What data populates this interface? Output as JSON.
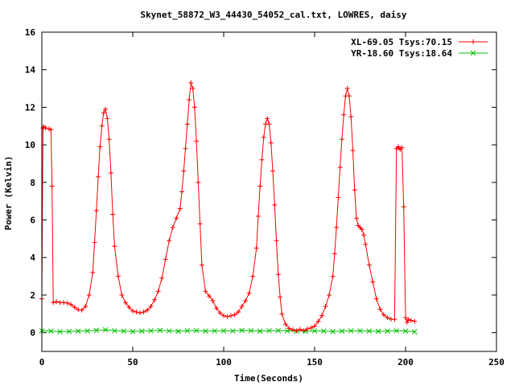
{
  "chart_data": {
    "type": "line",
    "title": "Skynet_58872_W3_44430_54052_cal.txt, LOWRES, daisy",
    "xlabel": "Time(Seconds)",
    "ylabel": "Power (Kelvin)",
    "xlim": [
      0,
      250
    ],
    "ylim": [
      -1,
      16
    ],
    "x_ticks": [
      0,
      50,
      100,
      150,
      200,
      250
    ],
    "y_ticks": [
      0,
      2,
      4,
      6,
      8,
      10,
      12,
      14,
      16
    ],
    "x_tick_labels": [
      "0",
      "50",
      "100",
      "150",
      "200",
      "250"
    ],
    "y_tick_labels": [
      "0",
      "2",
      "4",
      "6",
      "8",
      "10",
      "12",
      "14",
      "16"
    ],
    "legend_position": "top-right",
    "grid": false,
    "series": [
      {
        "name": "XL-69.05 Tsys:70.15",
        "color": "#ff0000",
        "marker": "plus",
        "x": [
          0,
          0.6,
          1.2,
          2,
          4,
          5,
          5.6,
          6.3,
          8,
          10,
          12,
          14,
          16,
          18,
          20,
          22,
          24,
          26,
          28,
          29,
          30,
          31,
          32,
          33,
          34,
          35,
          36,
          37,
          38,
          39,
          40,
          42,
          44,
          46,
          48,
          50,
          52,
          54,
          56,
          58,
          60,
          62,
          64,
          66,
          68,
          70,
          72,
          74,
          76,
          77,
          78,
          79,
          80,
          81,
          82,
          83,
          84,
          85,
          86,
          87,
          88,
          90,
          92,
          94,
          96,
          98,
          100,
          102,
          104,
          106,
          108,
          110,
          112,
          114,
          116,
          118,
          119,
          120,
          121,
          122,
          123,
          124,
          125,
          126,
          127,
          128,
          129,
          130,
          131,
          132,
          134,
          136,
          138,
          140,
          142,
          144,
          146,
          148,
          150,
          152,
          154,
          156,
          158,
          160,
          161,
          162,
          163,
          164,
          165,
          166,
          167,
          168,
          169,
          170,
          171,
          172,
          173,
          174,
          175,
          176,
          177,
          178,
          180,
          182,
          184,
          186,
          188,
          190,
          192,
          194,
          195,
          196,
          197,
          198,
          199,
          200,
          200.8,
          201.5,
          203,
          205
        ],
        "y": [
          1.8,
          10.9,
          10.95,
          10.9,
          10.85,
          10.8,
          7.8,
          1.6,
          1.65,
          1.6,
          1.6,
          1.58,
          1.5,
          1.35,
          1.22,
          1.2,
          1.4,
          2.0,
          3.2,
          4.8,
          6.5,
          8.3,
          9.9,
          11.0,
          11.7,
          11.9,
          11.4,
          10.3,
          8.5,
          6.3,
          4.6,
          3.0,
          2.0,
          1.6,
          1.35,
          1.15,
          1.1,
          1.05,
          1.1,
          1.2,
          1.4,
          1.75,
          2.2,
          2.9,
          3.9,
          4.9,
          5.6,
          6.1,
          6.6,
          7.5,
          8.6,
          9.8,
          11.1,
          12.4,
          13.3,
          13.0,
          12.0,
          10.2,
          8.0,
          5.8,
          3.6,
          2.2,
          1.95,
          1.7,
          1.3,
          1.05,
          0.9,
          0.85,
          0.9,
          0.95,
          1.1,
          1.4,
          1.7,
          2.1,
          3.0,
          4.5,
          6.2,
          7.8,
          9.2,
          10.4,
          11.1,
          11.4,
          11.1,
          10.1,
          8.6,
          6.8,
          4.9,
          3.1,
          1.9,
          1.0,
          0.45,
          0.22,
          0.15,
          0.1,
          0.18,
          0.1,
          0.2,
          0.25,
          0.35,
          0.6,
          0.9,
          1.4,
          2.0,
          3.0,
          4.2,
          5.6,
          7.2,
          8.8,
          10.3,
          11.6,
          12.6,
          13.0,
          12.6,
          11.5,
          9.7,
          7.6,
          6.1,
          5.7,
          5.6,
          5.5,
          5.2,
          4.7,
          3.6,
          2.7,
          1.8,
          1.25,
          0.95,
          0.8,
          0.72,
          0.7,
          9.8,
          9.9,
          9.75,
          9.85,
          6.7,
          0.8,
          0.55,
          0.7,
          0.65,
          0.6
        ]
      },
      {
        "name": "YR-18.60 Tsys:18.64",
        "color": "#00c000",
        "marker": "cross",
        "x": [
          0,
          5,
          10,
          15,
          20,
          25,
          30,
          35,
          40,
          45,
          50,
          55,
          60,
          65,
          70,
          75,
          80,
          85,
          90,
          95,
          100,
          105,
          110,
          115,
          120,
          125,
          130,
          135,
          140,
          145,
          150,
          155,
          160,
          165,
          170,
          175,
          180,
          185,
          190,
          195,
          200,
          205
        ],
        "y": [
          0.1,
          0.08,
          0.05,
          0.06,
          0.08,
          0.09,
          0.12,
          0.15,
          0.1,
          0.08,
          0.06,
          0.08,
          0.1,
          0.12,
          0.09,
          0.07,
          0.1,
          0.11,
          0.08,
          0.09,
          0.1,
          0.09,
          0.12,
          0.1,
          0.08,
          0.1,
          0.11,
          0.09,
          0.08,
          0.07,
          0.09,
          0.08,
          0.06,
          0.08,
          0.1,
          0.09,
          0.08,
          0.07,
          0.08,
          0.1,
          0.08,
          0.05
        ]
      }
    ]
  }
}
